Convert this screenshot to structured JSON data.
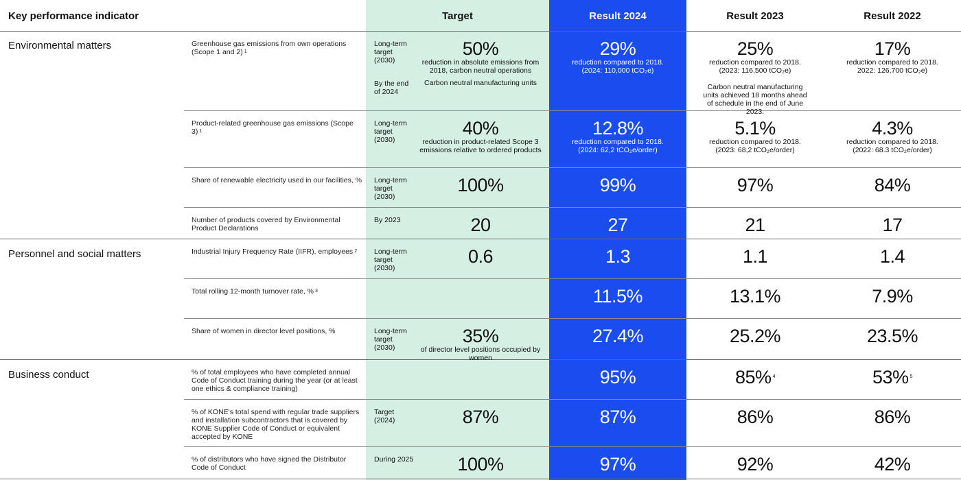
{
  "headers": {
    "kpi": "Key performance indicator",
    "target": "Target",
    "r2024": "Result 2024",
    "r2023": "Result 2023",
    "r2022": "Result 2022"
  },
  "colors": {
    "target_bg": "#d5efe3",
    "result_2024_bg": "#1a4cf0"
  },
  "categories": [
    "Environmental matters",
    "Personnel and social matters",
    "Business conduct"
  ],
  "rows": [
    {
      "kpi": "Greenhouse gas emissions from own operations (Scope 1 and 2)",
      "fn": "1",
      "target": [
        {
          "sub": "Long-term target (2030)",
          "main": "50%",
          "desc": "reduction in absolute emissions from 2018, carbon neutral operations"
        },
        {
          "sub": "By the end of 2024",
          "main": "",
          "desc": "Carbon neutral manufacturing units"
        }
      ],
      "results": [
        {
          "main": "29%",
          "desc": "reduction compared to 2018. (2024: 110,000 tCO₂e)",
          "sup": ""
        },
        {
          "main": "25%",
          "desc": "reduction compared to 2018. (2023: 116,500 tCO₂e)",
          "note": "Carbon neutral manufacturing units achieved 18 months ahead of schedule in the end of June 2023.",
          "sup": ""
        },
        {
          "main": "17%",
          "desc": "reduction compared to 2018. 2022: 126,700 tCO₂e)",
          "sup": ""
        }
      ]
    },
    {
      "kpi": "Product-related greenhouse gas emissions (Scope 3)",
      "fn": "1",
      "target": [
        {
          "sub": "Long-term target (2030)",
          "main": "40%",
          "desc": "reduction in product-related Scope 3 emissions relative to ordered products"
        }
      ],
      "results": [
        {
          "main": "12.8%",
          "desc": "reduction compared to 2018. (2024: 62,2 tCO₂e/order)",
          "sup": ""
        },
        {
          "main": "5.1%",
          "desc": "reduction compared to 2018. (2023: 68,2 tCO₂e/order)",
          "sup": ""
        },
        {
          "main": "4.3%",
          "desc": "reduction compared to 2018. (2022: 68.3 tCO₂e/order)",
          "sup": ""
        }
      ]
    },
    {
      "kpi": "Share of renewable electricity used in our facilities, %",
      "fn": "",
      "target": [
        {
          "sub": "Long-term target (2030)",
          "main": "100%",
          "desc": ""
        }
      ],
      "results": [
        {
          "main": "99%",
          "desc": "",
          "sup": ""
        },
        {
          "main": "97%",
          "desc": "",
          "sup": ""
        },
        {
          "main": "84%",
          "desc": "",
          "sup": ""
        }
      ]
    },
    {
      "kpi": "Number of products covered by Environmental Product Declarations",
      "fn": "",
      "target": [
        {
          "sub": "By 2023",
          "main": "20",
          "desc": ""
        }
      ],
      "results": [
        {
          "main": "27",
          "desc": "",
          "sup": ""
        },
        {
          "main": "21",
          "desc": "",
          "sup": ""
        },
        {
          "main": "17",
          "desc": "",
          "sup": ""
        }
      ]
    },
    {
      "kpi": "Industrial Injury Frequency Rate (IIFR), employees",
      "fn": "2",
      "target": [
        {
          "sub": "Long-term target (2030)",
          "main": "0.6",
          "desc": ""
        }
      ],
      "results": [
        {
          "main": "1.3",
          "desc": "",
          "sup": ""
        },
        {
          "main": "1.1",
          "desc": "",
          "sup": ""
        },
        {
          "main": "1.4",
          "desc": "",
          "sup": ""
        }
      ]
    },
    {
      "kpi": "Total rolling 12-month turnover rate, %",
      "fn": "3",
      "target": [],
      "results": [
        {
          "main": "11.5%",
          "desc": "",
          "sup": ""
        },
        {
          "main": "13.1%",
          "desc": "",
          "sup": ""
        },
        {
          "main": "7.9%",
          "desc": "",
          "sup": ""
        }
      ]
    },
    {
      "kpi": "Share of women in director level positions, %",
      "fn": "",
      "target": [
        {
          "sub": "Long-term target (2030)",
          "main": "35%",
          "desc": "of director level positions occupied by women"
        }
      ],
      "results": [
        {
          "main": "27.4%",
          "desc": "",
          "sup": ""
        },
        {
          "main": "25.2%",
          "desc": "",
          "sup": ""
        },
        {
          "main": "23.5%",
          "desc": "",
          "sup": ""
        }
      ]
    },
    {
      "kpi": "% of total employees who have completed annual Code of Conduct training during the year (or at least one ethics & compliance training)",
      "fn": "",
      "target": [],
      "results": [
        {
          "main": "95%",
          "desc": "",
          "sup": ""
        },
        {
          "main": "85%",
          "desc": "",
          "sup": "4"
        },
        {
          "main": "53%",
          "desc": "",
          "sup": "5"
        }
      ]
    },
    {
      "kpi": "% of KONE's total spend with regular trade suppliers and installation subcontractors that is covered by KONE Supplier Code of Conduct or equivalent accepted by KONE",
      "fn": "",
      "target": [
        {
          "sub": "Target (2024)",
          "main": "87%",
          "desc": ""
        }
      ],
      "results": [
        {
          "main": "87%",
          "desc": "",
          "sup": ""
        },
        {
          "main": "86%",
          "desc": "",
          "sup": ""
        },
        {
          "main": "86%",
          "desc": "",
          "sup": ""
        }
      ]
    },
    {
      "kpi": "% of distributors who have signed the Distributor Code of Conduct",
      "fn": "",
      "target": [
        {
          "sub": "During 2025",
          "main": "100%",
          "desc": ""
        }
      ],
      "results": [
        {
          "main": "97%",
          "desc": "",
          "sup": ""
        },
        {
          "main": "92%",
          "desc": "",
          "sup": ""
        },
        {
          "main": "42%",
          "desc": "",
          "sup": ""
        }
      ]
    }
  ]
}
